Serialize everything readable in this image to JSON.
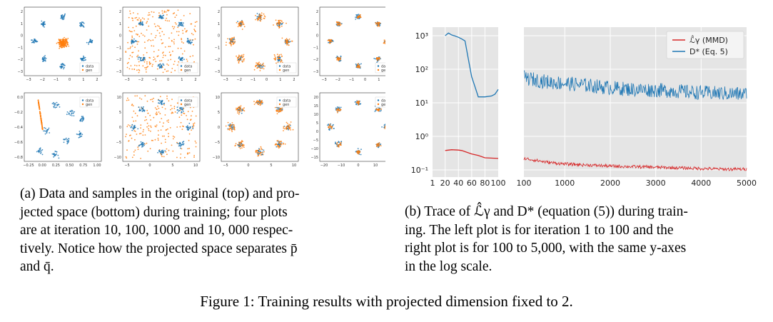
{
  "panel_a": {
    "caption_lines": [
      "(a) Data and samples in the original (top) and pro-",
      "jected space (bottom) during training; four plots",
      "are at iteration 10, 100, 1000 and 10, 000 respec-",
      "tively. Notice how the projected space separates p̄",
      "and q̄."
    ],
    "legend": {
      "data": "data",
      "gen": "gen"
    },
    "colors": {
      "data": "#1f77b4",
      "gen": "#ff7f0e"
    },
    "top_row": [
      {
        "iteration": 10,
        "xticks": [
          "−3",
          "−2",
          "−1",
          "0",
          "1",
          "2"
        ],
        "yticks": [
          "2",
          "1",
          "0",
          "−1",
          "−2",
          "−3"
        ]
      },
      {
        "iteration": 100,
        "xticks": [
          "−3",
          "−2",
          "−1",
          "0",
          "1",
          "2"
        ],
        "yticks": [
          "2",
          "1",
          "0",
          "−1",
          "−2",
          "−3"
        ]
      },
      {
        "iteration": 1000,
        "xticks": [
          "−3",
          "−2",
          "−1",
          "0",
          "1",
          "2"
        ],
        "yticks": [
          "2",
          "1",
          "0",
          "−1",
          "−2",
          "−3"
        ]
      },
      {
        "iteration": 10000,
        "xticks": [
          "−3",
          "−2",
          "−1",
          "0",
          "1",
          "2"
        ],
        "yticks": [
          "2",
          "1",
          "0",
          "−1",
          "−2",
          "−3"
        ]
      }
    ],
    "bottom_row": [
      {
        "iteration": 10,
        "xticks": [
          "−0.25",
          "0.00",
          "0.25",
          "0.50",
          "0.75",
          "1.00"
        ],
        "yticks": [
          "0.0",
          "−0.2",
          "−0.4",
          "−0.6",
          "−0.8"
        ]
      },
      {
        "iteration": 100,
        "xticks": [
          "−5",
          "0",
          "5",
          "10"
        ],
        "yticks": [
          "10",
          "5",
          "0",
          "−5",
          "−10"
        ]
      },
      {
        "iteration": 1000,
        "xticks": [
          "−5",
          "0",
          "5",
          "10"
        ],
        "yticks": [
          "10",
          "5",
          "0",
          "−5",
          "−10"
        ]
      },
      {
        "iteration": 10000,
        "xticks": [
          "−20",
          "−10",
          "0",
          "10",
          "20"
        ],
        "yticks": [
          "20",
          "15",
          "10",
          "5",
          "0",
          "−5",
          "−10",
          "−15"
        ]
      }
    ]
  },
  "panel_b": {
    "caption_lines": [
      "(b) Trace of ℒ̂γ and D* (equation (5)) during train-",
      "ing. The left plot is for iteration 1 to 100 and the",
      "right plot is for 100 to 5,000, with the same y-axes",
      "in the log scale."
    ],
    "y_tick_labels": [
      "10³",
      "10²",
      "10¹",
      "10⁰",
      "10⁻¹"
    ],
    "left_x_ticks": [
      "1",
      "20",
      "40",
      "60",
      "80",
      "100"
    ],
    "right_x_ticks": [
      "100",
      "1000",
      "2000",
      "3000",
      "4000",
      "5000"
    ],
    "legend": [
      "ℒ̂γ (MMD)",
      "D* (Eq. 5)"
    ],
    "colors": {
      "mmd": "#d62728",
      "dstar": "#1f77b4",
      "bg": "#e5e5e5"
    }
  },
  "chart_data": {
    "type": "line",
    "title": "",
    "xlabel": "",
    "ylabel": "",
    "y_scale": "log",
    "ylim": [
      0.05,
      2000
    ],
    "grid": true,
    "legend_position": "top-right",
    "left_xlim": [
      1,
      100
    ],
    "right_xlim": [
      100,
      5000
    ],
    "series": [
      {
        "name": "ℒ̂γ (MMD)",
        "x": [
          20,
          30,
          40,
          45,
          50,
          60,
          70,
          80,
          100
        ],
        "values": [
          0.38,
          0.4,
          0.39,
          0.38,
          0.35,
          0.3,
          0.27,
          0.23,
          0.22
        ]
      },
      {
        "name": "D* (Eq. 5)",
        "x": [
          20,
          25,
          30,
          35,
          40,
          45,
          50,
          55,
          60,
          65,
          70,
          75,
          80,
          90,
          95,
          100
        ],
        "values": [
          1000,
          1200,
          1050,
          980,
          900,
          800,
          700,
          200,
          60,
          30,
          15,
          15,
          15,
          16,
          18,
          25
        ]
      },
      {
        "name": "ℒ̂γ (MMD)",
        "x": [
          100,
          300,
          600,
          1000,
          1500,
          2000,
          2500,
          3000,
          3500,
          4000,
          4500,
          5000
        ],
        "values": [
          0.22,
          0.2,
          0.17,
          0.15,
          0.14,
          0.13,
          0.125,
          0.12,
          0.115,
          0.11,
          0.105,
          0.105
        ]
      },
      {
        "name": "D* (Eq. 5)",
        "x": [
          100,
          300,
          600,
          1000,
          1500,
          2000,
          2500,
          3000,
          3500,
          4000,
          4500,
          5000
        ],
        "values": [
          55,
          50,
          42,
          38,
          33,
          28,
          25,
          24,
          22,
          20,
          19,
          18
        ]
      }
    ]
  },
  "figure_caption": "Figure 1: Training results with projected dimension fixed to 2."
}
